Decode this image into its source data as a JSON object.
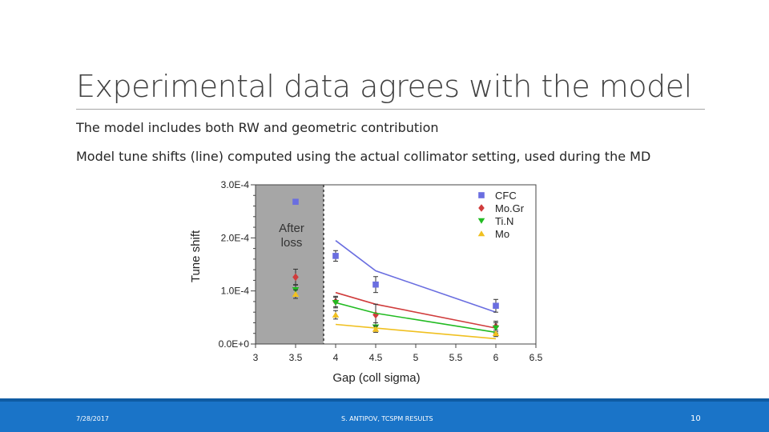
{
  "slide": {
    "title": "Experimental data agrees with the model",
    "bullets": [
      "The model includes both RW and geometric contribution",
      "Model tune shifts (line) computed using the actual collimator setting, used during the MD"
    ]
  },
  "footer": {
    "date": "7/28/2017",
    "center": "S. ANTIPOV, TCSPM RESULTS",
    "page": "10"
  },
  "chart_data": {
    "type": "scatter",
    "xlabel": "Gap (coll sigma)",
    "ylabel": "Tune shift",
    "xlim": [
      3,
      6.5
    ],
    "ylim": [
      0,
      0.0003
    ],
    "xticks": [
      "3",
      "3.5",
      "4",
      "4.5",
      "5",
      "5.5",
      "6",
      "6.5"
    ],
    "xtick_values": [
      3,
      3.5,
      4,
      4.5,
      5,
      5.5,
      6,
      6.5
    ],
    "yticks": [
      "0.0E+0",
      "1.0E-4",
      "2.0E-4",
      "3.0E-4"
    ],
    "ytick_values": [
      0,
      0.0001,
      0.0002,
      0.0003
    ],
    "grid": false,
    "legend_position": "top-right",
    "shaded_region": {
      "x_from": 3,
      "x_to": 3.85,
      "label_lines": [
        "After",
        "loss"
      ],
      "color": "#a6a6a6"
    },
    "series": [
      {
        "name": "CFC",
        "marker": "square",
        "color": "#6a6ee0",
        "points": [
          [
            3.5,
            0.000268
          ],
          [
            4,
            0.000166
          ],
          [
            4.5,
            0.000112
          ],
          [
            6,
            7.2e-05
          ]
        ],
        "errors": [
          3e-06,
          1e-05,
          1.5e-05,
          1.2e-05
        ],
        "model_line": [
          [
            4,
            0.000195
          ],
          [
            4.5,
            0.000138
          ],
          [
            6,
            6e-05
          ]
        ]
      },
      {
        "name": "Mo.Gr",
        "marker": "diamond",
        "color": "#d03c3c",
        "points": [
          [
            3.5,
            0.000126
          ],
          [
            4,
            8e-05
          ],
          [
            4.5,
            5.5e-05
          ],
          [
            6,
            3.3e-05
          ]
        ],
        "errors": [
          1.5e-05,
          1e-05,
          2e-05,
          1e-05
        ],
        "model_line": [
          [
            4,
            9.7e-05
          ],
          [
            4.5,
            7.5e-05
          ],
          [
            6,
            3e-05
          ]
        ]
      },
      {
        "name": "Ti.N",
        "marker": "triangle-down",
        "color": "#22bb22",
        "points": [
          [
            3.5,
            0.000102
          ],
          [
            4,
            7.8e-05
          ],
          [
            4.5,
            3.2e-05
          ],
          [
            6,
            3e-05
          ]
        ],
        "errors": [
          1e-05,
          1e-05,
          8e-06,
          1e-05
        ],
        "model_line": [
          [
            4,
            7.8e-05
          ],
          [
            4.5,
            5.8e-05
          ],
          [
            6,
            2.2e-05
          ]
        ]
      },
      {
        "name": "Mo",
        "marker": "triangle-up",
        "color": "#f0c020",
        "points": [
          [
            3.5,
            9.4e-05
          ],
          [
            4,
            5.5e-05
          ],
          [
            4.5,
            2.8e-05
          ],
          [
            6,
            2e-05
          ]
        ],
        "errors": [
          8e-06,
          8e-06,
          6e-06,
          6e-06
        ],
        "model_line": [
          [
            4,
            3.7e-05
          ],
          [
            4.5,
            3e-05
          ],
          [
            6,
            1e-05
          ]
        ]
      }
    ]
  }
}
